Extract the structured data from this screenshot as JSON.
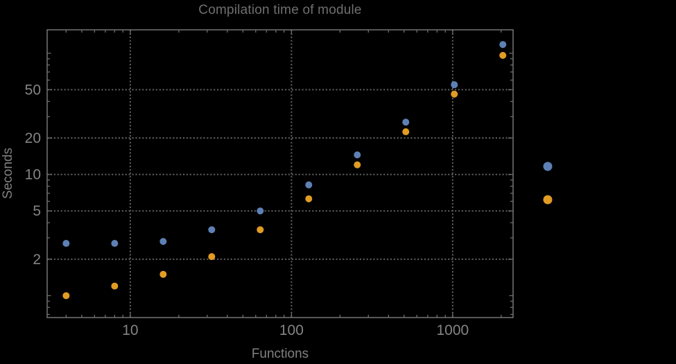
{
  "window": {
    "background": "#000000"
  },
  "colors": {
    "background": "#000000",
    "frame": "#6e6e6e",
    "grid": "#5e5e5e",
    "tick_text": "#848484",
    "title_text": "#6f6f6f",
    "axis_label_text": "#818181",
    "series_blue": "#5e81b5",
    "series_orange": "#e19c24"
  },
  "chart_data": {
    "type": "scatter",
    "title": "Compilation time of module",
    "xlabel": "Functions",
    "ylabel": "Seconds",
    "x_scale": "log",
    "y_scale": "log",
    "grid": "dotted lines at labeled major ticks, framed on all four sides with inward ticks",
    "legend_position": "right-outside-middle",
    "xlim": [
      3.05,
      2370
    ],
    "ylim": [
      0.66,
      156
    ],
    "x_major_ticks": [
      10,
      100,
      1000
    ],
    "x_major_labels": [
      "10",
      "100",
      "1000"
    ],
    "y_major_ticks": [
      2,
      5,
      10,
      20,
      50
    ],
    "y_major_labels": [
      "2",
      "5",
      "10",
      "20",
      "50"
    ],
    "x": [
      4,
      8,
      16,
      32,
      64,
      128,
      256,
      512,
      1024,
      2048
    ],
    "series": [
      {
        "name": "blue",
        "color": "#5e81b5",
        "values": [
          2.7,
          2.7,
          2.8,
          3.5,
          5.0,
          8.2,
          14.5,
          27,
          55,
          118
        ]
      },
      {
        "name": "orange",
        "color": "#e19c24",
        "values": [
          1.0,
          1.2,
          1.5,
          2.1,
          3.5,
          6.3,
          12,
          22.5,
          46,
          96
        ]
      }
    ],
    "legend": {
      "markers": [
        {
          "series": "blue",
          "color": "#5e81b5"
        },
        {
          "series": "orange",
          "color": "#e19c24"
        }
      ]
    }
  }
}
